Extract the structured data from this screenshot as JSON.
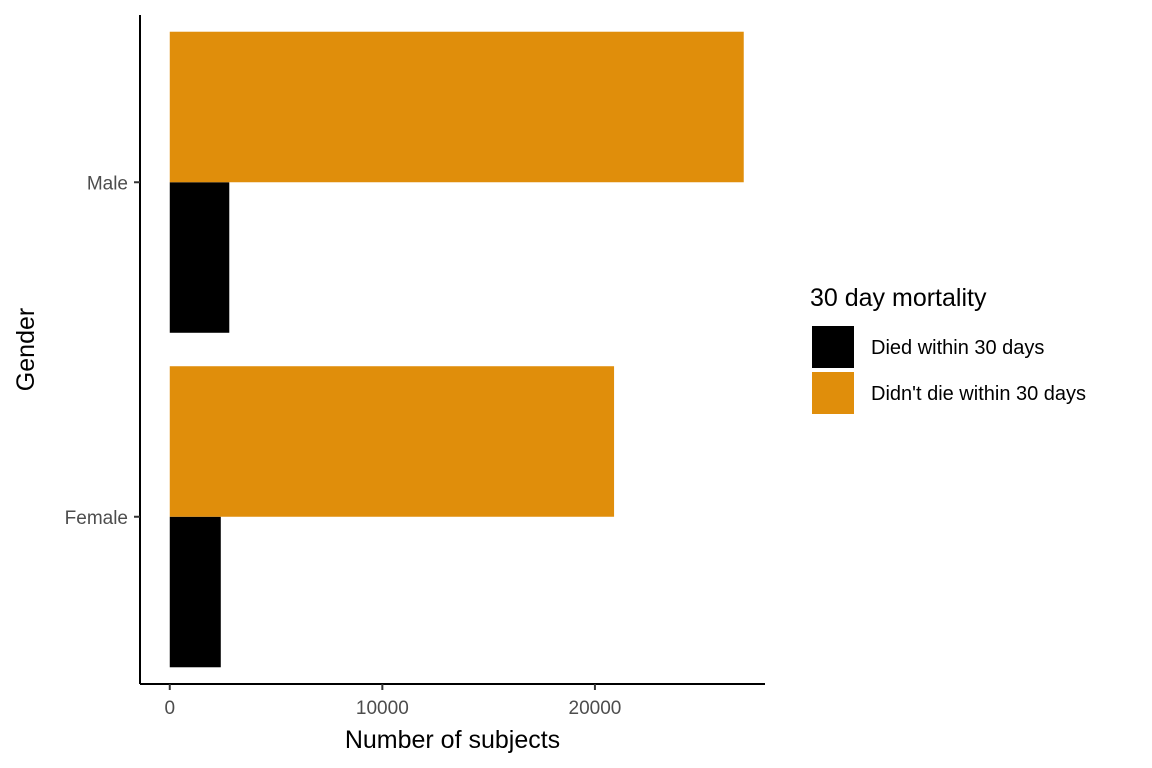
{
  "chart_data": {
    "type": "bar",
    "orientation": "horizontal",
    "categories": [
      "Female",
      "Male"
    ],
    "series": [
      {
        "name": "Died within 30 days",
        "color": "#000000",
        "values": [
          2400,
          2800
        ]
      },
      {
        "name": "Didn't die within 30 days",
        "color": "#E08E0B",
        "values": [
          20900,
          27000
        ]
      }
    ],
    "xlabel": "Number of subjects",
    "ylabel": "Gender",
    "xlim": [
      -1400,
      28000
    ],
    "xticks": [
      0,
      10000,
      20000
    ],
    "xtick_labels": [
      "0",
      "10000",
      "20000"
    ],
    "grid": false,
    "legend": {
      "title": "30 day mortality",
      "placement": "right"
    }
  }
}
